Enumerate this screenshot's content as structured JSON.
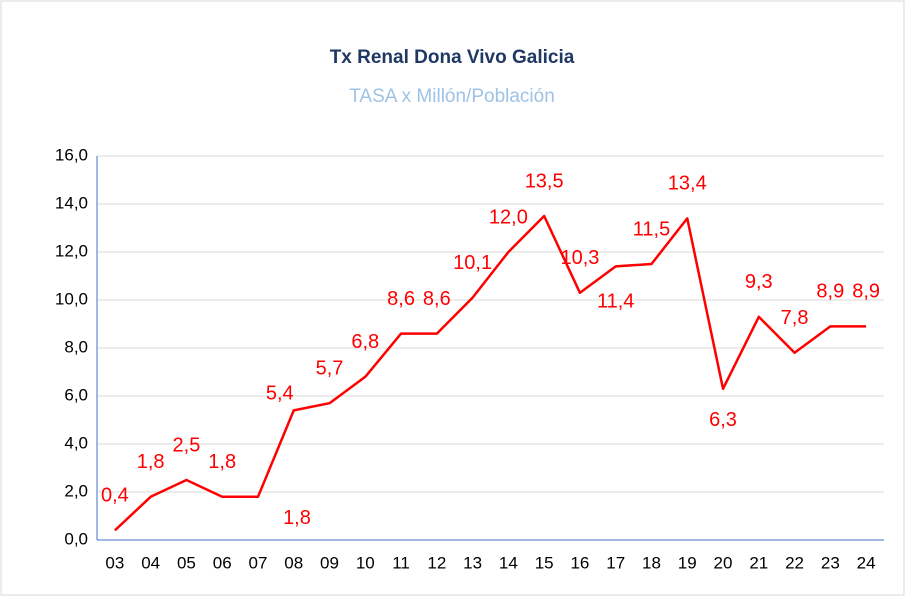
{
  "chart_data": {
    "type": "line",
    "title": "Tx Renal Dona Vivo Galicia",
    "subtitle": "TASA  x Millón/Población",
    "categories": [
      "03",
      "04",
      "05",
      "06",
      "07",
      "08",
      "09",
      "10",
      "11",
      "12",
      "13",
      "14",
      "15",
      "16",
      "17",
      "18",
      "19",
      "20",
      "21",
      "22",
      "23",
      "24"
    ],
    "series": [
      {
        "name": "Tx Renal Dona Vivo Galicia",
        "color": "#ff0000",
        "values": [
          0.4,
          1.8,
          2.5,
          1.8,
          1.8,
          5.4,
          5.7,
          6.8,
          8.6,
          8.6,
          10.1,
          12.0,
          13.5,
          10.3,
          11.4,
          11.5,
          13.4,
          6.3,
          9.3,
          7.8,
          8.9,
          8.9
        ],
        "value_labels": [
          "0,4",
          "1,8",
          "2,5",
          "1,8",
          "1,8",
          "5,4",
          "5,7",
          "6,8",
          "8,6",
          "8,6",
          "10,1",
          "12,0",
          "13,5",
          "10,3",
          "11,4",
          "11,5",
          "13,4",
          "6,3",
          "9,3",
          "7,8",
          "8,9",
          "8,9"
        ]
      }
    ],
    "ylim": [
      0,
      16
    ],
    "yticks": [
      {
        "value": 0,
        "label": "0,0"
      },
      {
        "value": 2,
        "label": "2,0"
      },
      {
        "value": 4,
        "label": "4,0"
      },
      {
        "value": 6,
        "label": "6,0"
      },
      {
        "value": 8,
        "label": "8,0"
      },
      {
        "value": 10,
        "label": "10,0"
      },
      {
        "value": 12,
        "label": "12,0"
      },
      {
        "value": 14,
        "label": "14,0"
      },
      {
        "value": 16,
        "label": "16,0"
      }
    ],
    "grid": true
  }
}
